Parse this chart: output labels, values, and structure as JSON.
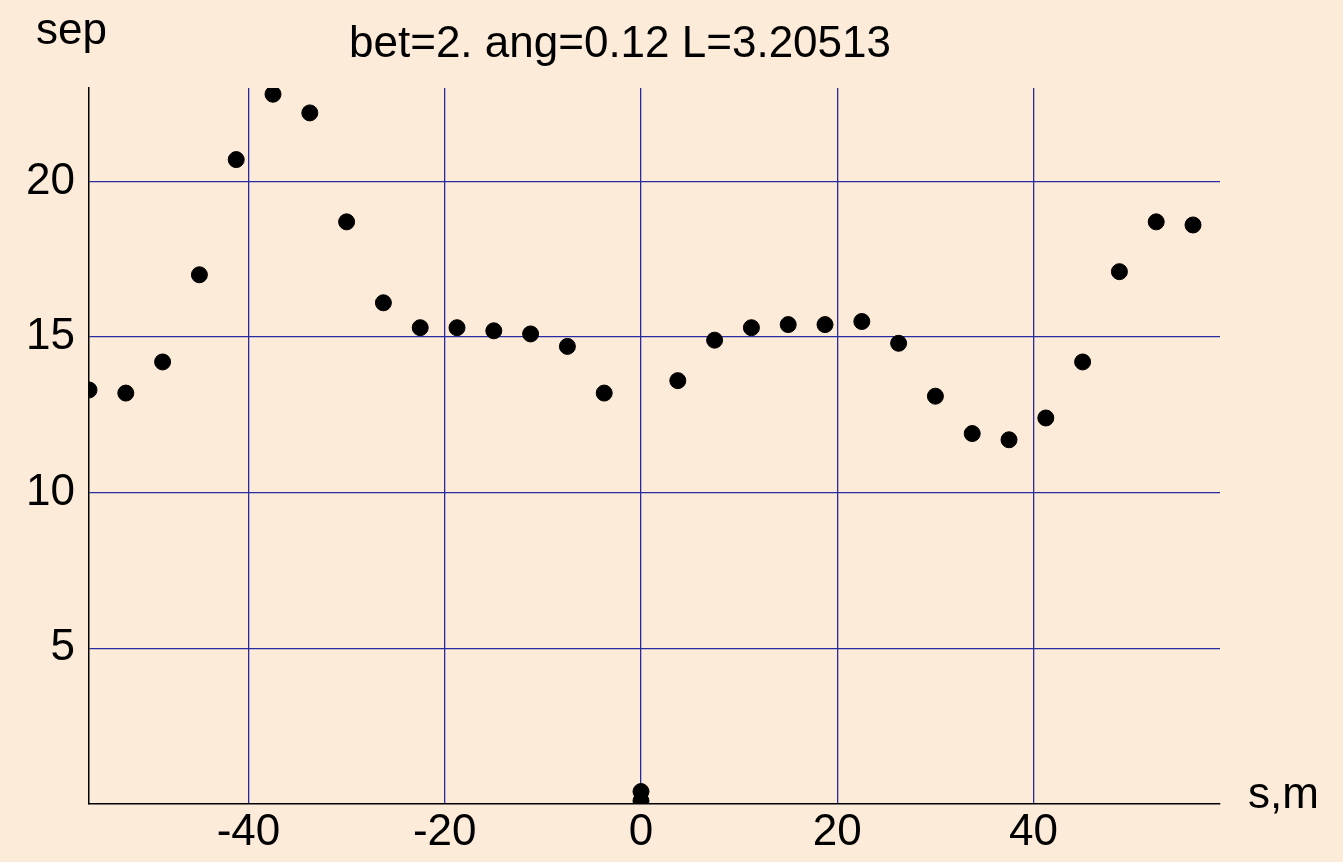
{
  "chart_data": {
    "type": "scatter",
    "title": "bet=2. ang=0.12 L=3.20513",
    "xlabel": "s,m",
    "ylabel": "sep",
    "x": [
      -56.25,
      -52.5,
      -48.75,
      -45,
      -41.25,
      -37.5,
      -33.75,
      -30,
      -26.25,
      -22.5,
      -18.75,
      -15,
      -11.25,
      -7.5,
      -3.75,
      0,
      0,
      3.75,
      7.5,
      11.25,
      15,
      18.75,
      22.5,
      26.25,
      30,
      33.75,
      37.5,
      41.25,
      45,
      48.75,
      52.5,
      56.25
    ],
    "series": [
      {
        "color": "#000000",
        "values": [
          13.3,
          13.2,
          14.2,
          17.0,
          20.7,
          22.8,
          22.2,
          18.7,
          16.1,
          15.3,
          15.3,
          15.2,
          15.1,
          14.7,
          13.2,
          0.4,
          0.1,
          13.6,
          14.9,
          15.3,
          15.4,
          15.4,
          15.5,
          14.8,
          13.1,
          11.9,
          11.7,
          12.4,
          14.2,
          17.1,
          18.7,
          18.6
        ]
      }
    ],
    "xlim": [
      -56.25,
      59
    ],
    "ylim": [
      0,
      23
    ],
    "xticks": [
      -40,
      -20,
      0,
      20,
      40
    ],
    "yticks": [
      5,
      10,
      15,
      20
    ],
    "grid": true,
    "legend": false,
    "marker": "circle"
  }
}
